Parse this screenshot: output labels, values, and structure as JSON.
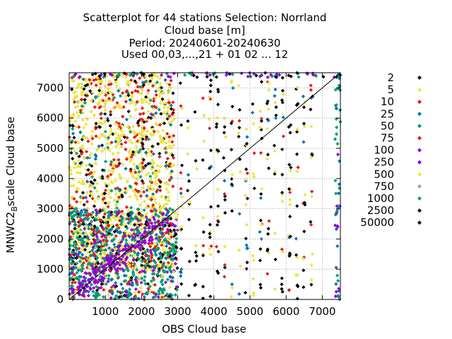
{
  "chart_data": {
    "type": "scatter",
    "title_lines": [
      "Scatterplot for   44 stations Selection: Norrland",
      "Cloud base [m]",
      "Period: 20240601-20240630",
      "Used 00,03,...,21 + 01 02 ... 12"
    ],
    "xlabel": "OBS Cloud base",
    "ylabel_prefix": "MNWC2",
    "ylabel_subscript": "B",
    "ylabel_suffix": "scale Cloud base",
    "xlim": [
      0,
      7500
    ],
    "ylim": [
      0,
      7500
    ],
    "x_ticks": [
      "1000",
      "2000",
      "3000",
      "4000",
      "5000",
      "6000",
      "7000"
    ],
    "y_ticks": [
      "0",
      "1000",
      "2000",
      "3000",
      "4000",
      "5000",
      "6000",
      "7000"
    ],
    "grid": true,
    "diagonal_line": true,
    "legend_position": "right",
    "series": [
      {
        "name": "2",
        "color": "#000000"
      },
      {
        "name": "5",
        "color": "#f0e442"
      },
      {
        "name": "10",
        "color": "#e41a1c"
      },
      {
        "name": "25",
        "color": "#0072b2"
      },
      {
        "name": "50",
        "color": "#009e73"
      },
      {
        "name": "75",
        "color": "#e41a1c"
      },
      {
        "name": "100",
        "color": "#9400d3"
      },
      {
        "name": "250",
        "color": "#9400d3"
      },
      {
        "name": "500",
        "color": "#f0e442"
      },
      {
        "name": "750",
        "color": "#a0a0a0"
      },
      {
        "name": "1000",
        "color": "#009e73"
      },
      {
        "name": "2500",
        "color": "#000000"
      },
      {
        "name": "50000",
        "color": "#000000"
      }
    ]
  }
}
